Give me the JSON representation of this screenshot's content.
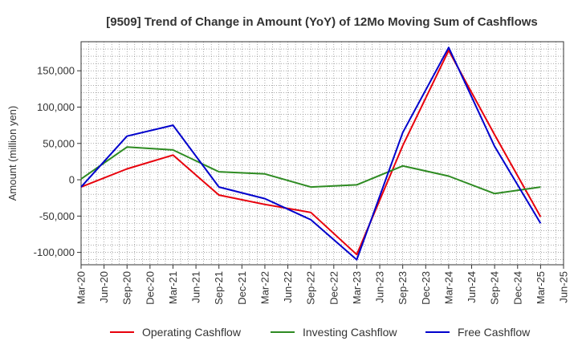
{
  "chart_data": {
    "type": "line",
    "title": "[9509]  Trend of Change in Amount (YoY) of 12Mo Moving Sum of Cashflows",
    "xlabel": "",
    "ylabel": "Amount (million yen)",
    "x_ticks": [
      "Mar-20",
      "Jun-20",
      "Sep-20",
      "Dec-20",
      "Mar-21",
      "Jun-21",
      "Sep-21",
      "Dec-21",
      "Mar-22",
      "Jun-22",
      "Sep-22",
      "Dec-22",
      "Mar-23",
      "Jun-23",
      "Sep-23",
      "Dec-23",
      "Mar-24",
      "Jun-24",
      "Sep-24",
      "Dec-24",
      "Mar-25",
      "Jun-25"
    ],
    "y_ticks": [
      -100000,
      -50000,
      0,
      50000,
      100000,
      150000
    ],
    "y_tick_labels": [
      "-100,000",
      "-50,000",
      "0",
      "50,000",
      "100,000",
      "150,000"
    ],
    "ylim": [
      -117000,
      190000
    ],
    "grid": true,
    "legend_position": "bottom",
    "series": [
      {
        "name": "Operating Cashflow",
        "color": "#e8000b",
        "points": [
          {
            "x": "Mar-20",
            "y": -10000
          },
          {
            "x": "Sep-20",
            "y": 15000
          },
          {
            "x": "Mar-21",
            "y": 34000
          },
          {
            "x": "Sep-21",
            "y": -21000
          },
          {
            "x": "Mar-22",
            "y": -34000
          },
          {
            "x": "Sep-22",
            "y": -45000
          },
          {
            "x": "Mar-23",
            "y": -103000
          },
          {
            "x": "Sep-23",
            "y": 47000
          },
          {
            "x": "Mar-24",
            "y": 178000
          },
          {
            "x": "Sep-24",
            "y": 62000
          },
          {
            "x": "Mar-25",
            "y": -51000
          }
        ]
      },
      {
        "name": "Investing Cashflow",
        "color": "#2e8b22",
        "points": [
          {
            "x": "Mar-20",
            "y": 1000
          },
          {
            "x": "Sep-20",
            "y": 45000
          },
          {
            "x": "Mar-21",
            "y": 41000
          },
          {
            "x": "Sep-21",
            "y": 11000
          },
          {
            "x": "Mar-22",
            "y": 8000
          },
          {
            "x": "Sep-22",
            "y": -10000
          },
          {
            "x": "Mar-23",
            "y": -7000
          },
          {
            "x": "Sep-23",
            "y": 19000
          },
          {
            "x": "Mar-24",
            "y": 5000
          },
          {
            "x": "Sep-24",
            "y": -19000
          },
          {
            "x": "Mar-25",
            "y": -10000
          }
        ]
      },
      {
        "name": "Free Cashflow",
        "color": "#0000cc",
        "points": [
          {
            "x": "Mar-20",
            "y": -10000
          },
          {
            "x": "Sep-20",
            "y": 60000
          },
          {
            "x": "Mar-21",
            "y": 75000
          },
          {
            "x": "Sep-21",
            "y": -10000
          },
          {
            "x": "Mar-22",
            "y": -26000
          },
          {
            "x": "Sep-22",
            "y": -55000
          },
          {
            "x": "Mar-23",
            "y": -110000
          },
          {
            "x": "Sep-23",
            "y": 65000
          },
          {
            "x": "Mar-24",
            "y": 182000
          },
          {
            "x": "Sep-24",
            "y": 46000
          },
          {
            "x": "Mar-25",
            "y": -60000
          }
        ]
      }
    ]
  }
}
